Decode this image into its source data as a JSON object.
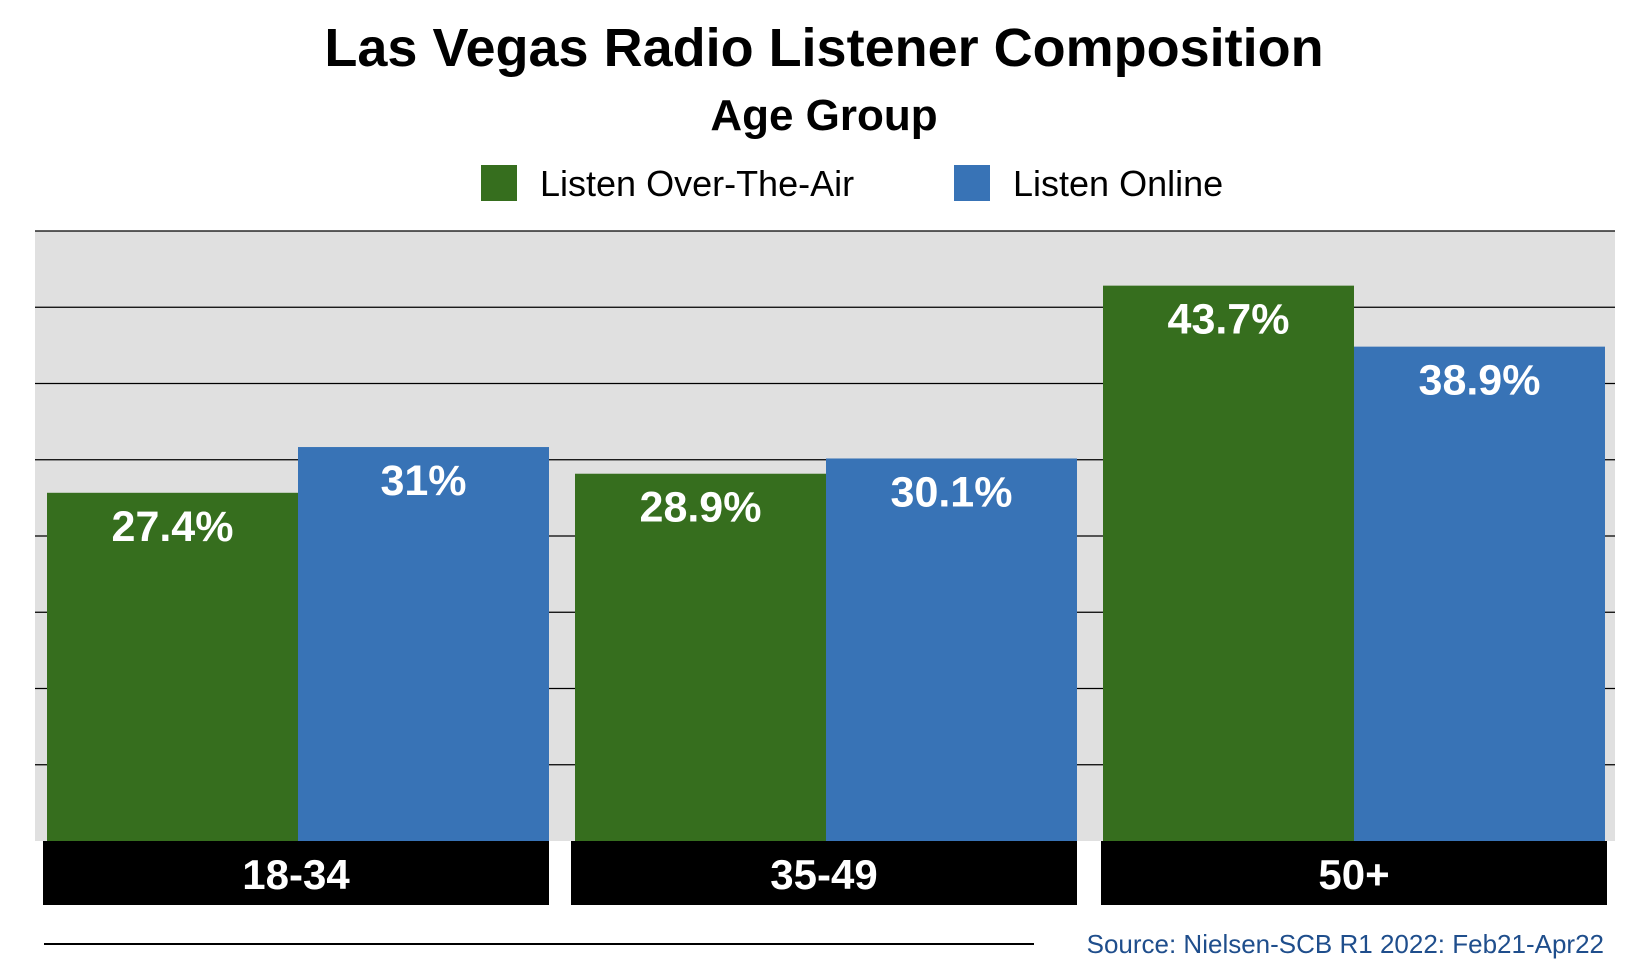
{
  "chart_data": {
    "type": "bar",
    "title": "Las Vegas Radio Listener Composition",
    "subtitle": "Age Group",
    "categories": [
      "18-34",
      "35-49",
      "50+"
    ],
    "series": [
      {
        "name": "Listen Over-The-Air",
        "color": "#366e1e",
        "values": [
          27.4,
          28.9,
          43.7
        ],
        "labels": [
          "27.4%",
          "28.9%",
          "43.7%"
        ]
      },
      {
        "name": "Listen Online",
        "color": "#3873b6",
        "values": [
          31,
          30.1,
          38.9
        ],
        "labels": [
          "31%",
          "30.1%",
          "38.9%"
        ]
      }
    ],
    "ylim": [
      0,
      48
    ],
    "grid": true,
    "legend_position": "top-center",
    "xlabel": "",
    "ylabel": "",
    "source": "Source: Nielsen-SCB R1 2022: Feb21-Apr22"
  },
  "colors": {
    "plot_background": "#e0e0e0",
    "category_band": "#000000",
    "source_text": "#1f4e8c"
  }
}
